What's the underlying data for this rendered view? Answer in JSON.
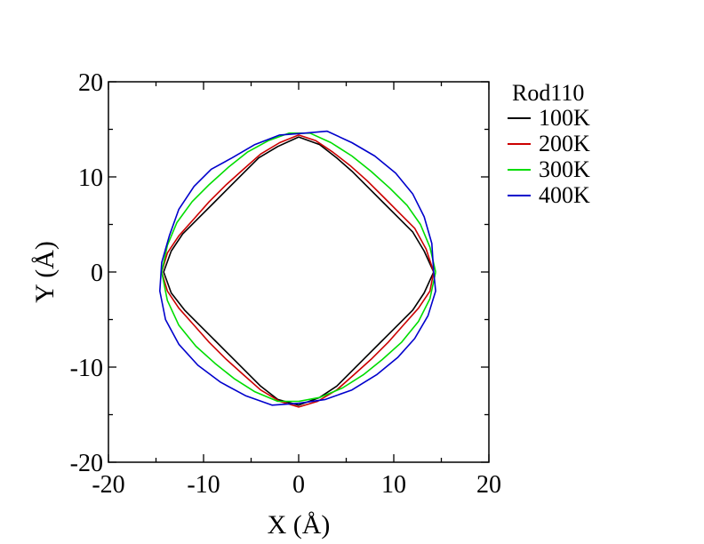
{
  "chart_data": {
    "type": "line",
    "xlabel": "X (Å)",
    "ylabel": "Y (Å)",
    "xlim": [
      -20,
      20
    ],
    "ylim": [
      -20,
      20
    ],
    "xticks": [
      -20,
      -10,
      0,
      10,
      20
    ],
    "yticks": [
      -20,
      -10,
      0,
      10,
      20
    ],
    "xtick_labels": [
      "-20",
      "-10",
      "0",
      "10",
      "20"
    ],
    "ytick_labels": [
      "-20",
      "-10",
      "0",
      "10",
      "20"
    ],
    "grid": false,
    "legend": {
      "title": "Rod110",
      "placement": "right-outside-top"
    },
    "series": [
      {
        "name": "100K",
        "color": "#000000",
        "points": [
          [
            14.2,
            0
          ],
          [
            13.2,
            2.2
          ],
          [
            12,
            4.2
          ],
          [
            10.6,
            5.6
          ],
          [
            9,
            7.2
          ],
          [
            7.2,
            9
          ],
          [
            5.6,
            10.6
          ],
          [
            4,
            12
          ],
          [
            2.2,
            13.4
          ],
          [
            0,
            14.2
          ],
          [
            -2.2,
            13.2
          ],
          [
            -4.2,
            12
          ],
          [
            -5.8,
            10.4
          ],
          [
            -7.4,
            8.8
          ],
          [
            -9,
            7.2
          ],
          [
            -10.6,
            5.6
          ],
          [
            -12.2,
            4
          ],
          [
            -13.4,
            2.2
          ],
          [
            -14.2,
            0
          ],
          [
            -13.4,
            -2.2
          ],
          [
            -12,
            -4
          ],
          [
            -10.4,
            -5.6
          ],
          [
            -8.8,
            -7.2
          ],
          [
            -7.2,
            -8.8
          ],
          [
            -5.6,
            -10.4
          ],
          [
            -4,
            -12
          ],
          [
            -2.2,
            -13.4
          ],
          [
            0,
            -14
          ],
          [
            2.2,
            -13.2
          ],
          [
            4,
            -12
          ],
          [
            5.6,
            -10.4
          ],
          [
            7.2,
            -8.8
          ],
          [
            8.8,
            -7.2
          ],
          [
            10.4,
            -5.6
          ],
          [
            12,
            -4
          ],
          [
            13.2,
            -2.2
          ],
          [
            14.2,
            0
          ]
        ]
      },
      {
        "name": "200K",
        "color": "#cc0000",
        "points": [
          [
            14.2,
            0
          ],
          [
            13.4,
            2.4
          ],
          [
            12.2,
            4.6
          ],
          [
            10.6,
            6.2
          ],
          [
            9,
            7.8
          ],
          [
            7.2,
            9.6
          ],
          [
            5.4,
            11.2
          ],
          [
            3.6,
            12.6
          ],
          [
            1.8,
            13.8
          ],
          [
            0,
            14.4
          ],
          [
            -2,
            13.6
          ],
          [
            -4,
            12.4
          ],
          [
            -5.8,
            10.8
          ],
          [
            -7.6,
            9.2
          ],
          [
            -9.4,
            7.4
          ],
          [
            -11,
            5.6
          ],
          [
            -12.6,
            3.8
          ],
          [
            -13.8,
            2
          ],
          [
            -14.4,
            0
          ],
          [
            -13.8,
            -2
          ],
          [
            -12.6,
            -3.8
          ],
          [
            -11,
            -5.6
          ],
          [
            -9.4,
            -7.4
          ],
          [
            -7.6,
            -9.2
          ],
          [
            -5.8,
            -10.8
          ],
          [
            -4,
            -12.4
          ],
          [
            -2,
            -13.6
          ],
          [
            0,
            -14.2
          ],
          [
            2,
            -13.6
          ],
          [
            4,
            -12.4
          ],
          [
            5.8,
            -10.8
          ],
          [
            7.6,
            -9.2
          ],
          [
            9.4,
            -7.4
          ],
          [
            11,
            -5.6
          ],
          [
            12.6,
            -3.8
          ],
          [
            13.8,
            -2
          ],
          [
            14.2,
            0
          ]
        ]
      },
      {
        "name": "300K",
        "color": "#00dd00",
        "points": [
          [
            14.4,
            0
          ],
          [
            13.8,
            2.6
          ],
          [
            12.8,
            5
          ],
          [
            11.4,
            7
          ],
          [
            9.6,
            8.8
          ],
          [
            7.6,
            10.6
          ],
          [
            5.6,
            12.2
          ],
          [
            3.4,
            13.6
          ],
          [
            1.2,
            14.6
          ],
          [
            -1,
            14.6
          ],
          [
            -3.2,
            13.8
          ],
          [
            -5.4,
            12.6
          ],
          [
            -7.4,
            11
          ],
          [
            -9.4,
            9.2
          ],
          [
            -11.2,
            7.4
          ],
          [
            -12.8,
            5.2
          ],
          [
            -13.8,
            2.8
          ],
          [
            -14.4,
            0
          ],
          [
            -13.8,
            -3
          ],
          [
            -12.6,
            -5.6
          ],
          [
            -10.8,
            -7.8
          ],
          [
            -8.8,
            -9.6
          ],
          [
            -6.8,
            -11.2
          ],
          [
            -4.6,
            -12.6
          ],
          [
            -2.2,
            -13.6
          ],
          [
            0,
            -13.6
          ],
          [
            2.2,
            -13.2
          ],
          [
            4.6,
            -12.2
          ],
          [
            6.8,
            -10.8
          ],
          [
            8.8,
            -9.2
          ],
          [
            10.8,
            -7.4
          ],
          [
            12.6,
            -5.2
          ],
          [
            13.8,
            -2.8
          ],
          [
            14.4,
            0
          ]
        ]
      },
      {
        "name": "400K",
        "color": "#0000cc",
        "points": [
          [
            14.2,
            0
          ],
          [
            14,
            3
          ],
          [
            13.2,
            5.8
          ],
          [
            12,
            8.2
          ],
          [
            10.2,
            10.4
          ],
          [
            8,
            12.2
          ],
          [
            5.6,
            13.6
          ],
          [
            3,
            14.8
          ],
          [
            0.6,
            14.6
          ],
          [
            -2,
            14.4
          ],
          [
            -4.6,
            13.4
          ],
          [
            -7,
            12
          ],
          [
            -9.2,
            10.8
          ],
          [
            -11,
            9
          ],
          [
            -12.6,
            6.6
          ],
          [
            -13.6,
            3.8
          ],
          [
            -14.4,
            1
          ],
          [
            -14.6,
            -2
          ],
          [
            -14,
            -5
          ],
          [
            -12.6,
            -7.6
          ],
          [
            -10.6,
            -9.8
          ],
          [
            -8.2,
            -11.6
          ],
          [
            -5.6,
            -13
          ],
          [
            -2.8,
            -14
          ],
          [
            0,
            -13.8
          ],
          [
            2.8,
            -13.4
          ],
          [
            5.6,
            -12.4
          ],
          [
            8.2,
            -10.8
          ],
          [
            10.4,
            -9
          ],
          [
            12.2,
            -7
          ],
          [
            13.6,
            -4.6
          ],
          [
            14.4,
            -2
          ],
          [
            14.2,
            0
          ]
        ]
      }
    ]
  }
}
